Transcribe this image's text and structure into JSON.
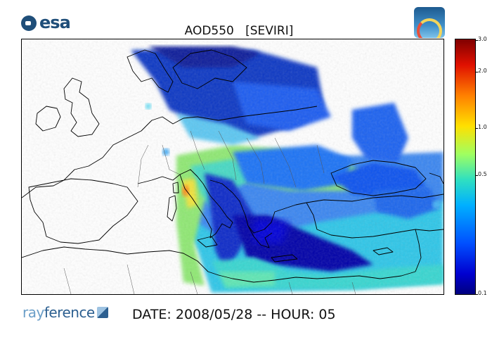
{
  "header": {
    "esa_logo_text": "esa",
    "title": "AOD550   [SEVIRI]"
  },
  "map": {
    "product": "AOD550",
    "sensor": "SEVIRI",
    "region": "Europe / Mediterranean",
    "colormap": "jet"
  },
  "colorbar": {
    "ticks": [
      "3.0",
      "2.0",
      "1.0",
      "0.5",
      "0.1"
    ],
    "colors": {
      "low": "#00007f",
      "mid": "#30e0c0",
      "high": "#800000"
    }
  },
  "footer": {
    "brand_prefix": "ray",
    "brand_suffix": "ference",
    "date_text": "DATE: 2008/05/28 -- HOUR: 05"
  }
}
